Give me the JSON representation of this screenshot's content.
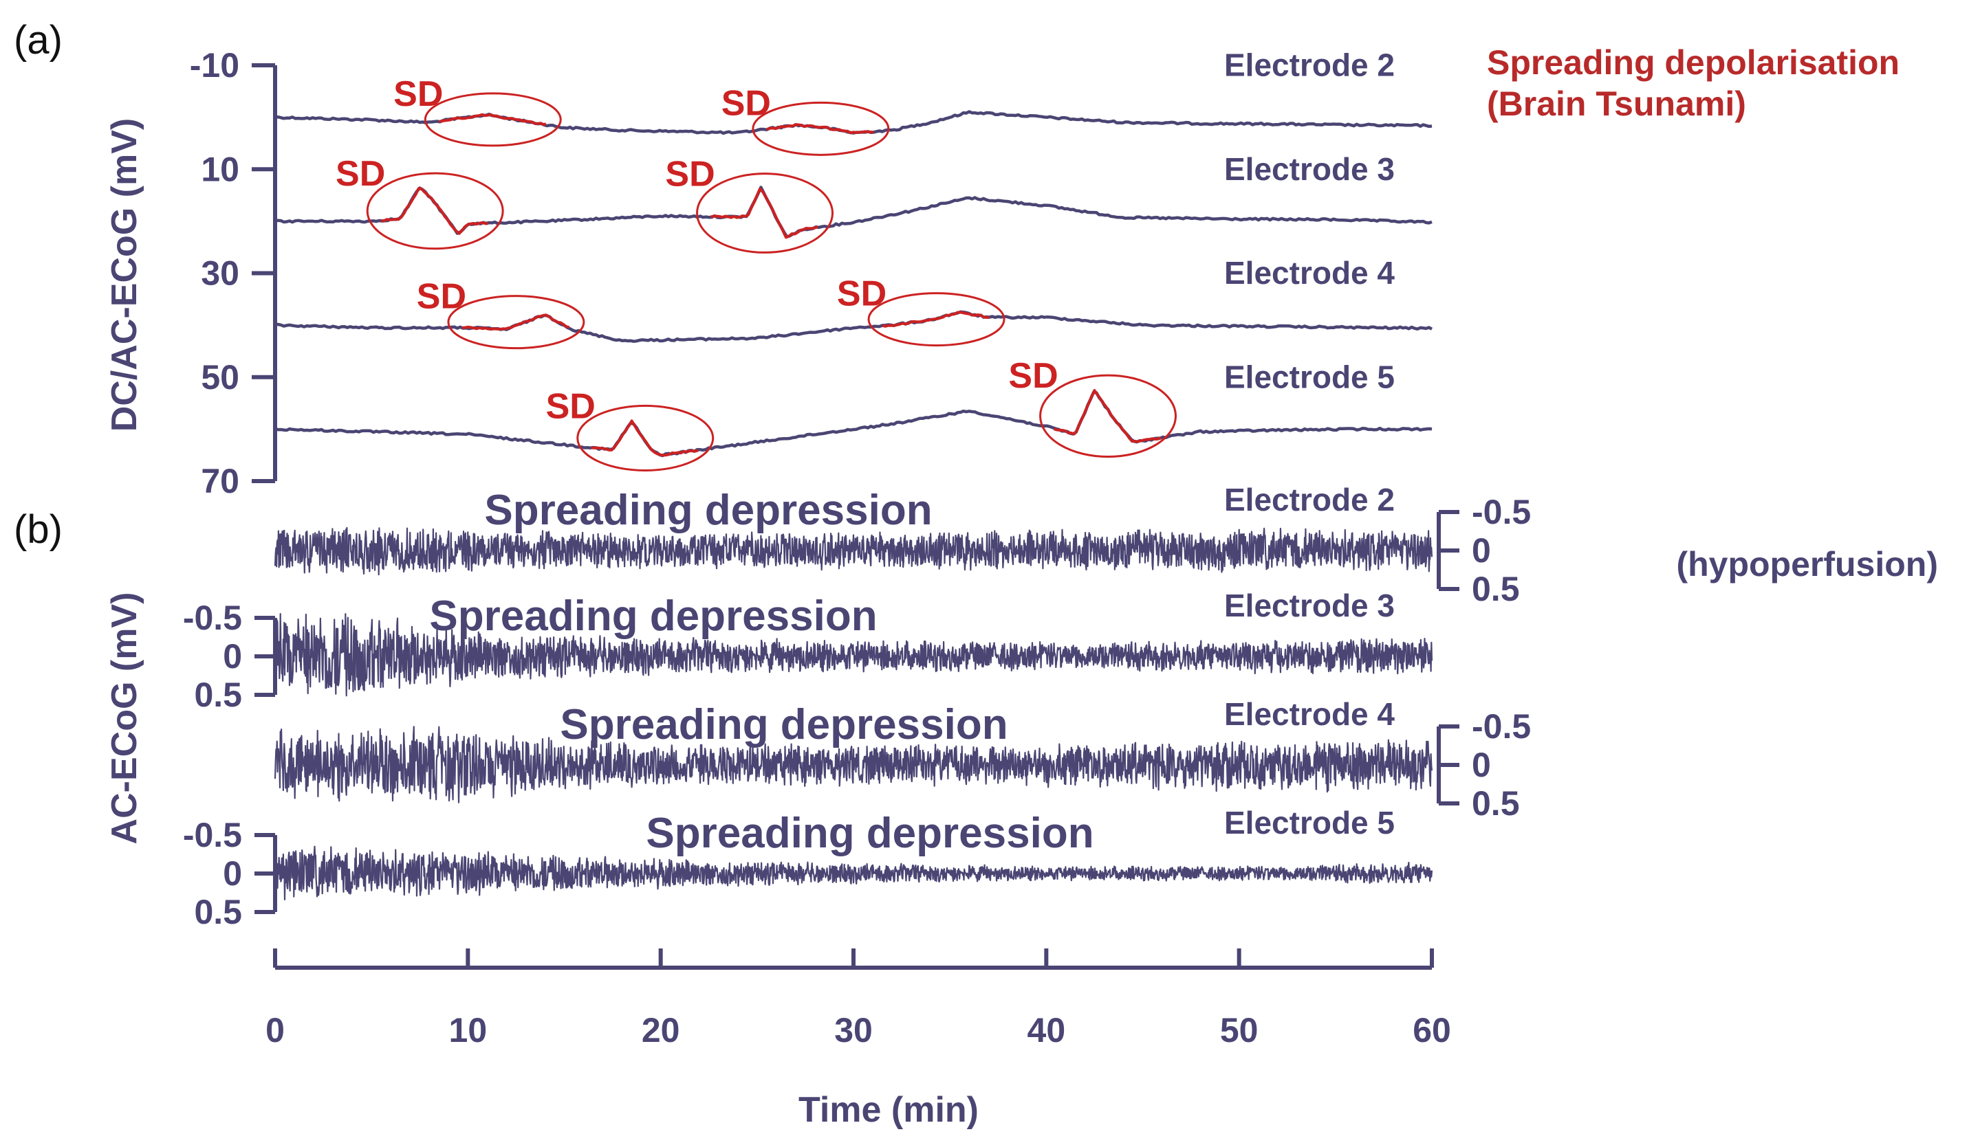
{
  "colors": {
    "trace": "#4a4573",
    "sd": "#cc2222",
    "annotation_red": "#b82a2a",
    "panel_text": "#111111"
  },
  "chart_data": [
    {
      "panel": "(a)",
      "type": "line",
      "title": "",
      "xlabel": "",
      "ylabel": "DC/AC-ECoG (mV)",
      "ylim": [
        -10,
        70
      ],
      "y_inverted": true,
      "yticks": [
        -10,
        10,
        30,
        50,
        70
      ],
      "xlim": [
        0,
        60
      ],
      "annotation": {
        "line1": "Spreading depolarisation",
        "line2": "(Brain Tsunami)"
      },
      "series": [
        {
          "name": "Electrode 2",
          "baseline": 0,
          "x": [
            0,
            5,
            8,
            11,
            13,
            15,
            18,
            24,
            27,
            28.5,
            30,
            32,
            34,
            36,
            38,
            40,
            44,
            48,
            52,
            56,
            60
          ],
          "y": [
            0,
            0.5,
            1,
            -0.5,
            0.8,
            2,
            2.5,
            3,
            1.5,
            2,
            3,
            2.5,
            1,
            -1,
            -0.5,
            0,
            1,
            1.2,
            1.3,
            1.5,
            1.6
          ]
        },
        {
          "name": "Electrode 3",
          "baseline": 20,
          "x": [
            0,
            5,
            6.5,
            7.5,
            8.2,
            9.5,
            10,
            14,
            20,
            24,
            24.5,
            25.2,
            26.5,
            27.5,
            30,
            33,
            36,
            40,
            44,
            50,
            55,
            60
          ],
          "y": [
            20,
            20,
            19.5,
            13.5,
            16,
            22.5,
            20.5,
            20,
            19,
            19.2,
            19,
            13.5,
            23,
            21.5,
            20.2,
            18,
            15.5,
            17,
            19.3,
            19.6,
            19.7,
            20.2
          ]
        },
        {
          "name": "Electrode 4",
          "baseline": 40,
          "x": [
            0,
            5,
            10,
            12,
            14,
            15.5,
            18,
            25,
            30,
            32,
            34,
            35.5,
            37,
            40,
            45,
            50,
            55,
            60
          ],
          "y": [
            40,
            40.5,
            40.5,
            40.8,
            38,
            41,
            43,
            42.5,
            40.5,
            40,
            39,
            37.5,
            38.5,
            38.5,
            40,
            40.2,
            40.4,
            40.6
          ]
        },
        {
          "name": "Electrode 5",
          "baseline": 60,
          "x": [
            0,
            5,
            10,
            15,
            17.5,
            18.5,
            19.5,
            20,
            24,
            28,
            32,
            36,
            38,
            40,
            41.5,
            42.5,
            43.5,
            44.5,
            48,
            52,
            56,
            60
          ],
          "y": [
            60,
            60.5,
            61,
            63,
            64,
            58.5,
            64,
            65,
            63,
            61,
            59,
            56.5,
            58,
            59.5,
            61,
            52.5,
            58,
            62.5,
            60.5,
            60.2,
            60,
            60
          ]
        }
      ],
      "sd_events": [
        {
          "label": "SD",
          "electrode": "Electrode 2",
          "time": 11.3
        },
        {
          "label": "SD",
          "electrode": "Electrode 2",
          "time": 28.3
        },
        {
          "label": "SD",
          "electrode": "Electrode 3",
          "time": 8.3
        },
        {
          "label": "SD",
          "electrode": "Electrode 3",
          "time": 25.4
        },
        {
          "label": "SD",
          "electrode": "Electrode 4",
          "time": 12.5
        },
        {
          "label": "SD",
          "electrode": "Electrode 4",
          "time": 34.3
        },
        {
          "label": "SD",
          "electrode": "Electrode 5",
          "time": 19.2
        },
        {
          "label": "SD",
          "electrode": "Electrode 5",
          "time": 43.2
        }
      ]
    },
    {
      "panel": "(b)",
      "type": "line",
      "title": "",
      "xlabel": "Time (min)",
      "ylabel": "AC-ECoG (mV)",
      "xlim": [
        0,
        60
      ],
      "xticks": [
        0,
        10,
        20,
        30,
        40,
        50,
        60
      ],
      "annotation": "(hypoperfusion)",
      "traces": [
        {
          "name": "Electrode 2",
          "label": "Spreading depression",
          "ylim": [
            -0.5,
            0.5
          ],
          "yticks": [
            "-0.5",
            "0",
            "0.5"
          ],
          "axis_side": "right",
          "amplitude_profile": {
            "t": [
              0,
              5,
              10,
              20,
              30,
              40,
              50,
              60
            ],
            "amp": [
              0.32,
              0.34,
              0.3,
              0.25,
              0.26,
              0.28,
              0.3,
              0.3
            ]
          }
        },
        {
          "name": "Electrode 3",
          "label": "Spreading depression",
          "ylim": [
            -0.5,
            0.5
          ],
          "yticks": [
            "-0.5",
            "0",
            "0.5"
          ],
          "axis_side": "left",
          "amplitude_profile": {
            "t": [
              0,
              3,
              6,
              10,
              15,
              20,
              30,
              40,
              50,
              60
            ],
            "amp": [
              0.6,
              0.65,
              0.55,
              0.35,
              0.3,
              0.25,
              0.22,
              0.2,
              0.22,
              0.28
            ]
          }
        },
        {
          "name": "Electrode 4",
          "label": "Spreading depression",
          "ylim": [
            -0.5,
            0.5
          ],
          "yticks": [
            "-0.5",
            "0",
            "0.5"
          ],
          "axis_side": "right",
          "amplitude_profile": {
            "t": [
              0,
              5,
              10,
              15,
              20,
              30,
              40,
              50,
              60
            ],
            "amp": [
              0.5,
              0.52,
              0.5,
              0.35,
              0.3,
              0.28,
              0.3,
              0.35,
              0.38
            ]
          }
        },
        {
          "name": "Electrode 5",
          "label": "Spreading depression",
          "ylim": [
            -0.5,
            0.5
          ],
          "yticks": [
            "-0.5",
            "0",
            "0.5"
          ],
          "axis_side": "left",
          "amplitude_profile": {
            "t": [
              0,
              10,
              20,
              30,
              40,
              50,
              60
            ],
            "amp": [
              0.38,
              0.32,
              0.2,
              0.14,
              0.1,
              0.1,
              0.16
            ]
          }
        }
      ]
    }
  ]
}
